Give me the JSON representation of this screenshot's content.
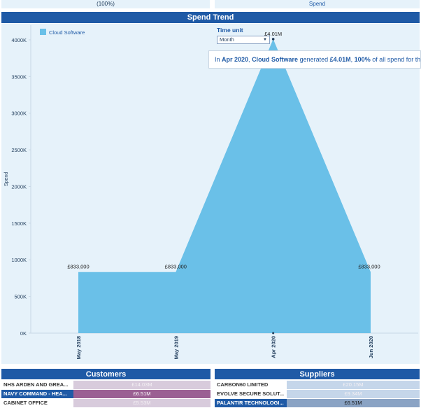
{
  "top_strip": {
    "left": "(100%)",
    "right": "Spend"
  },
  "chart_data": {
    "type": "area",
    "title": "Spend Trend",
    "categories": [
      "May 2018",
      "May 2019",
      "Apr 2020",
      "Jun 2020"
    ],
    "series": [
      {
        "name": "Cloud Software",
        "color": "#6ac0e8",
        "values": [
          833000,
          833000,
          4010000,
          833000
        ],
        "value_labels": [
          "£833,000",
          "£833,000",
          "£4.01M",
          "£833,000"
        ]
      }
    ],
    "ylabel": "Spend",
    "ylim": [
      0,
      4200000
    ],
    "yticks": [
      {
        "value": 0,
        "label": "0K"
      },
      {
        "value": 500000,
        "label": "500K"
      },
      {
        "value": 1000000,
        "label": "1000K"
      },
      {
        "value": 1500000,
        "label": "1500K"
      },
      {
        "value": 2000000,
        "label": "2000K"
      },
      {
        "value": 2500000,
        "label": "2500K"
      },
      {
        "value": 3000000,
        "label": "3000K"
      },
      {
        "value": 3500000,
        "label": "3500K"
      },
      {
        "value": 4000000,
        "label": "4000K"
      }
    ],
    "legend": "top-left",
    "grid": false
  },
  "time_unit": {
    "label": "Time unit",
    "selected": "Month"
  },
  "tooltip": {
    "segments": [
      {
        "text": "In ",
        "bold": false
      },
      {
        "text": "Apr 2020",
        "bold": true
      },
      {
        "text": ", ",
        "bold": false
      },
      {
        "text": "Cloud Software",
        "bold": true
      },
      {
        "text": " generated ",
        "bold": false
      },
      {
        "text": "£4.01M",
        "bold": true
      },
      {
        "text": ", ",
        "bold": false
      },
      {
        "text": "100%",
        "bold": true
      },
      {
        "text": " of all spend for the",
        "bold": false
      }
    ]
  },
  "customers": {
    "title": "Customers",
    "rows": [
      {
        "name": "NHS ARDEN AND GREA...",
        "value": "£14.03M",
        "color": "#d8cbdc",
        "selected": false
      },
      {
        "name": "NAVY COMMAND - HEA...",
        "value": "£6.51M",
        "color": "#9b5f93",
        "selected": true
      },
      {
        "name": "CABINET OFFICE",
        "value": "£5.53M",
        "color": "#d8cbdc",
        "selected": false
      }
    ]
  },
  "suppliers": {
    "title": "Suppliers",
    "rows": [
      {
        "name": "CARBON60 LIMITED",
        "value": "£20.15M",
        "color": "#c5d6ea",
        "selected": false
      },
      {
        "name": "EVOLVE SECURE SOLUT...",
        "value": "£9.34M",
        "color": "#c5d6ea",
        "selected": false
      },
      {
        "name": "PALANTIR TECHNOLOGI...",
        "value": "£6.51M",
        "color": "#8aa3c4",
        "selected": true
      }
    ]
  }
}
